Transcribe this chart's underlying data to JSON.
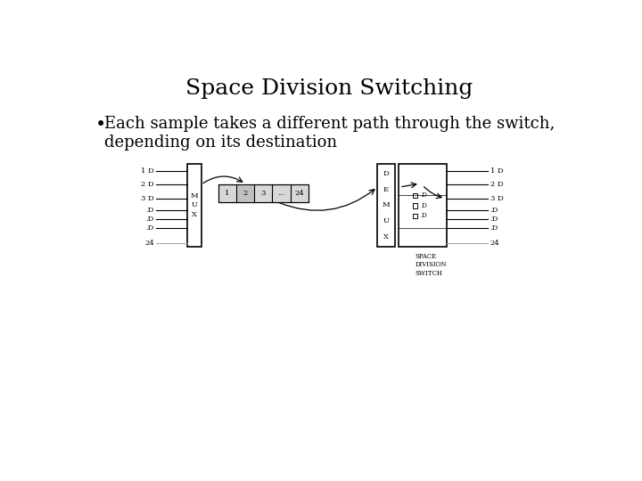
{
  "title": "Space Division Switching",
  "bullet_text": "Each sample takes a different path through the switch,\ndepending on its destination",
  "bg_color": "#ffffff",
  "text_color": "#000000",
  "title_fontsize": 18,
  "bullet_fontsize": 13,
  "diagram_fontsize": 6,
  "switch_label": "SPACE\nDIVISION\nSWITCH",
  "slot_labels": [
    "1",
    "2",
    "3",
    "...",
    "24"
  ],
  "slot_fill": "#d8d8d8",
  "slot2_fill": "#c0c0c0"
}
